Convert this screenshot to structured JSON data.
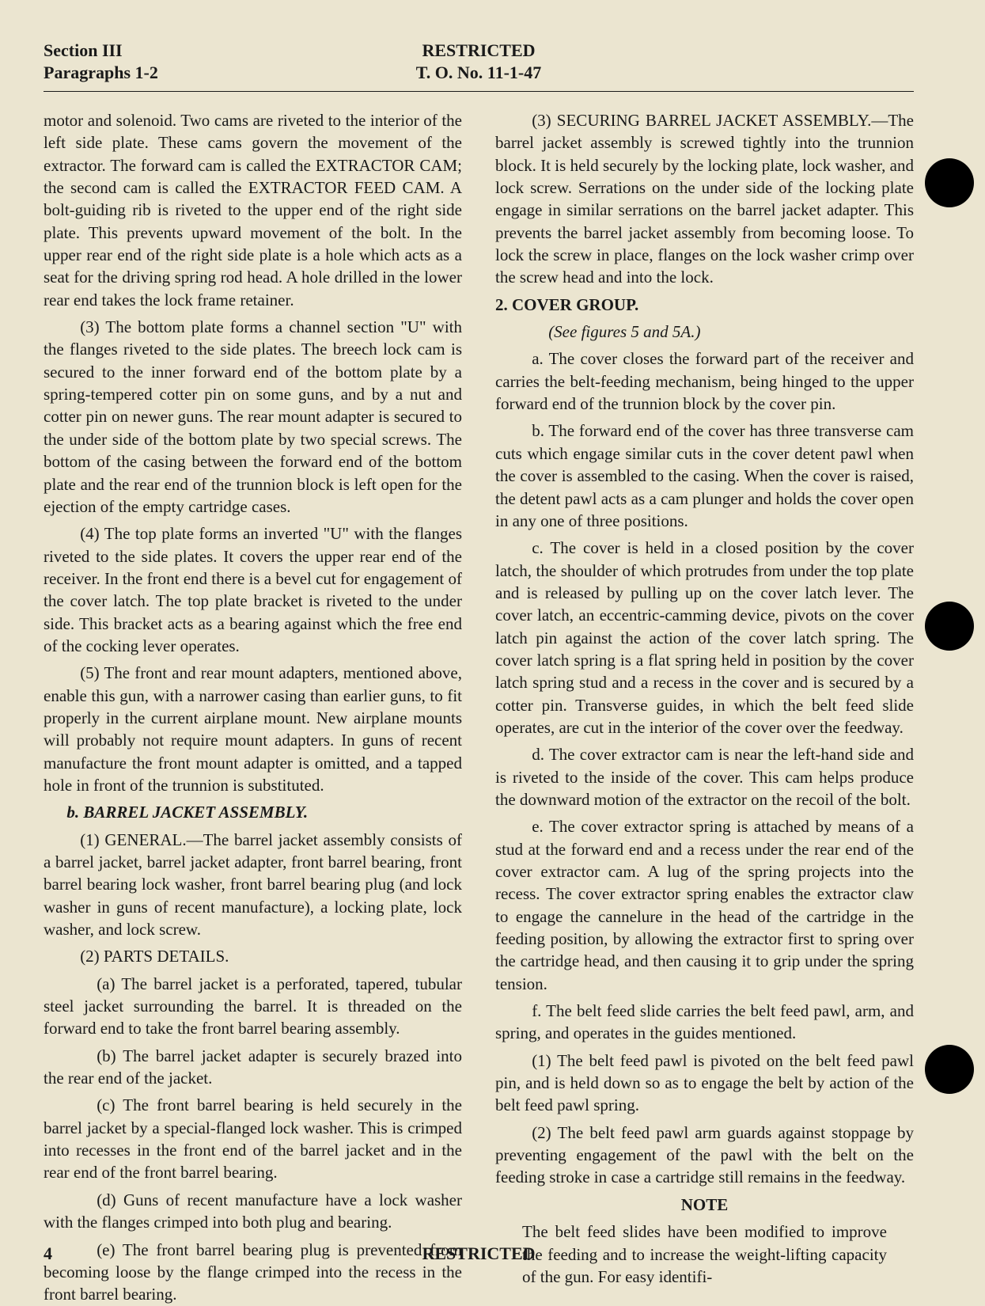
{
  "header": {
    "section": "Section III",
    "paragraphs": "Paragraphs 1-2",
    "classification_top": "RESTRICTED",
    "to_number": "T. O. No. 11-1-47"
  },
  "footer": {
    "page": "4",
    "classification_bottom": "RESTRICTED"
  },
  "col": {
    "p1": "motor and solenoid. Two cams are riveted to the interior of the left side plate. These cams govern the movement of the extractor. The forward cam is called the EXTRACTOR CAM; the second cam is called the EXTRACTOR FEED CAM. A bolt-guiding rib is riveted to the upper end of the right side plate. This prevents upward movement of the bolt. In the upper rear end of the right side plate is a hole which acts as a seat for the driving spring rod head. A hole drilled in the lower rear end takes the lock frame retainer.",
    "p2": "(3) The bottom plate forms a channel section \"U\" with the flanges riveted to the side plates. The breech lock cam is secured to the inner forward end of the bottom plate by a spring-tempered cotter pin on some guns, and by a nut and cotter pin on newer guns. The rear mount adapter is secured to the under side of the bottom plate by two special screws. The bottom of the casing between the forward end of the bottom plate and the rear end of the trunnion block is left open for the ejection of the empty cartridge cases.",
    "p3": "(4) The top plate forms an inverted \"U\" with the flanges riveted to the side plates. It covers the upper rear end of the receiver. In the front end there is a bevel cut for engagement of the cover latch. The top plate bracket is riveted to the under side. This bracket acts as a bearing against which the free end of the cocking lever operates.",
    "p4": "(5) The front and rear mount adapters, mentioned above, enable this gun, with a narrower casing than earlier guns, to fit properly in the current airplane mount. New airplane mounts will probably not require mount adapters. In guns of recent manufacture the front mount adapter is omitted, and a tapped hole in front of the trunnion is substituted.",
    "h_b": "b. BARREL JACKET ASSEMBLY.",
    "p5": "(1) GENERAL.—The barrel jacket assembly consists of a barrel jacket, barrel jacket adapter, front barrel bearing, front barrel bearing lock washer, front barrel bearing plug (and lock washer in guns of recent manufacture), a locking plate, lock washer, and lock screw.",
    "p6": "(2) PARTS DETAILS.",
    "p7": "(a) The barrel jacket is a perforated, tapered, tubular steel jacket surrounding the barrel. It is threaded on the forward end to take the front barrel bearing assembly.",
    "p8": "(b) The barrel jacket adapter is securely brazed into the rear end of the jacket.",
    "p9": "(c) The front barrel bearing is held securely in the barrel jacket by a special-flanged lock washer. This is crimped into recesses in the front end of the barrel jacket and in the rear end of the front barrel bearing.",
    "p10": "(d) Guns of recent manufacture have a lock washer with the flanges crimped into both plug and bearing.",
    "p11": "(e) The front barrel bearing plug is prevented from becoming loose by the flange crimped into the recess in the front barrel bearing.",
    "p12": "(3) SECURING BARREL JACKET ASSEMBLY.—The barrel jacket assembly is screwed tightly into the trunnion block. It is held securely by the locking plate, lock washer, and lock screw. Serrations on the under side of the locking plate engage in similar serrations on the barrel jacket adapter. This prevents the barrel jacket assembly from becoming loose. To lock the screw in place, flanges on the lock washer crimp over the screw head and into the lock.",
    "h2": "2. COVER GROUP.",
    "see": "(See figures 5 and 5A.)",
    "p13": "a. The cover closes the forward part of the receiver and carries the belt-feeding mechanism, being hinged to the upper forward end of the trunnion block by the cover pin.",
    "p14": "b. The forward end of the cover has three transverse cam cuts which engage similar cuts in the cover detent pawl when the cover is assembled to the casing. When the cover is raised, the detent pawl acts as a cam plunger and holds the cover open in any one of three positions.",
    "p15": "c. The cover is held in a closed position by the cover latch, the shoulder of which protrudes from under the top plate and is released by pulling up on the cover latch lever. The cover latch, an eccentric-camming device, pivots on the cover latch pin against the action of the cover latch spring. The cover latch spring is a flat spring held in position by the cover latch spring stud and a recess in the cover and is secured by a cotter pin. Transverse guides, in which the belt feed slide operates, are cut in the interior of the cover over the feedway.",
    "p16": "d. The cover extractor cam is near the left-hand side and is riveted to the inside of the cover. This cam helps produce the downward motion of the extractor on the recoil of the bolt.",
    "p17": "e. The cover extractor spring is attached by means of a stud at the forward end and a recess under the rear end of the cover extractor cam. A lug of the spring projects into the recess. The cover extractor spring enables the extractor claw to engage the cannelure in the head of the cartridge in the feeding position, by allowing the extractor first to spring over the cartridge head, and then causing it to grip under the spring tension.",
    "p18": "f. The belt feed slide carries the belt feed pawl, arm, and spring, and operates in the guides mentioned.",
    "p19": "(1) The belt feed pawl is pivoted on the belt feed pawl pin, and is held down so as to engage the belt by action of the belt feed pawl spring.",
    "p20": "(2) The belt feed pawl arm guards against stoppage by preventing engagement of the pawl with the belt on the feeding stroke in case a cartridge still remains in the feedway.",
    "note_head": "NOTE",
    "note": "The belt feed slides have been modified to improve the feeding and to increase the weight-lifting capacity of the gun. For easy identifi-"
  }
}
